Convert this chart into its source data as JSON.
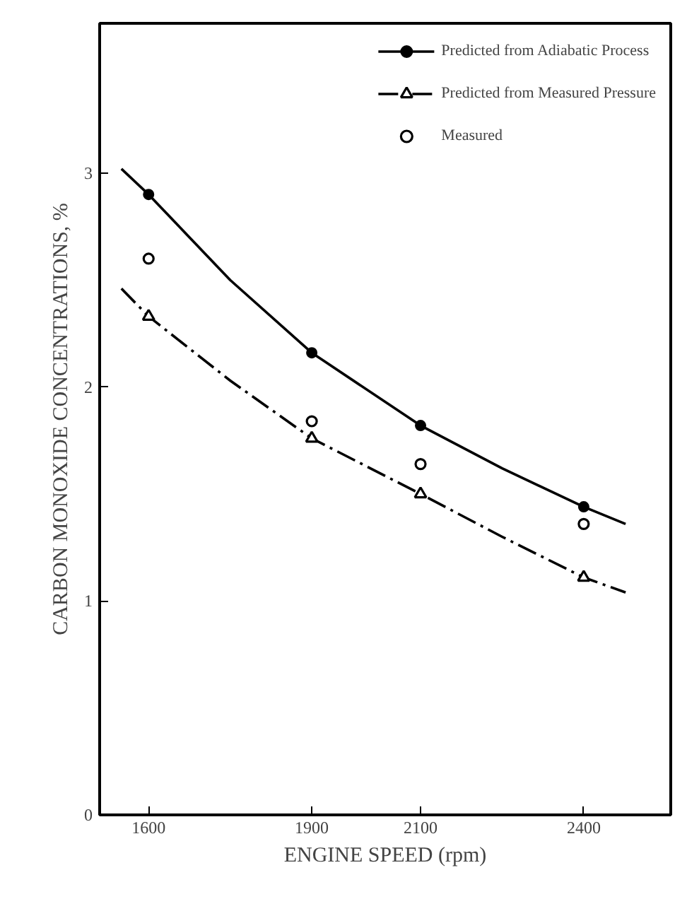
{
  "chart_data": {
    "type": "line",
    "xlabel": "ENGINE SPEED (rpm)",
    "ylabel": "CARBON MONOXIDE CONCENTRATIONS, %",
    "xlim": [
      1510,
      2560
    ],
    "ylim": [
      0,
      3.7
    ],
    "xticks": [
      1600,
      1900,
      2100,
      2400
    ],
    "yticks": [
      0,
      1,
      2,
      3
    ],
    "grid": false,
    "legend": "top right",
    "series": [
      {
        "color": "#000000",
        "line_style": "solid",
        "marker": "none",
        "x": [
          1550,
          1600,
          1750,
          1900,
          2100,
          2250,
          2400,
          2477
        ],
        "values": [
          3.02,
          2.9,
          2.5,
          2.16,
          1.82,
          1.62,
          1.44,
          1.36
        ]
      },
      {
        "type": "scatter",
        "name": "Predicted from Adiabatic Process",
        "color": "#000000",
        "marker": "circle",
        "x": [
          1600,
          1900,
          2100,
          2400
        ],
        "values": [
          2.9,
          2.16,
          1.82,
          1.44
        ]
      },
      {
        "color": "#000000",
        "line_style": "dashed",
        "marker": "none",
        "x": [
          1550,
          1600,
          1750,
          1900,
          2100,
          2250,
          2400,
          2477
        ],
        "values": [
          2.46,
          2.33,
          2.03,
          1.76,
          1.5,
          1.3,
          1.11,
          1.04
        ]
      },
      {
        "type": "scatter",
        "name": "Predicted from Measured Pressure",
        "color": "#000000",
        "marker": "triangle",
        "x": [
          1600,
          1900,
          2100,
          2400
        ],
        "values": [
          2.33,
          1.76,
          1.5,
          1.11
        ]
      },
      {
        "type": "scatter",
        "name": "Measured",
        "color": "#000000",
        "marker": "circle_open",
        "x": [
          1600,
          1900,
          2100,
          2400
        ],
        "values": [
          2.6,
          1.84,
          1.64,
          1.36
        ]
      }
    ]
  }
}
